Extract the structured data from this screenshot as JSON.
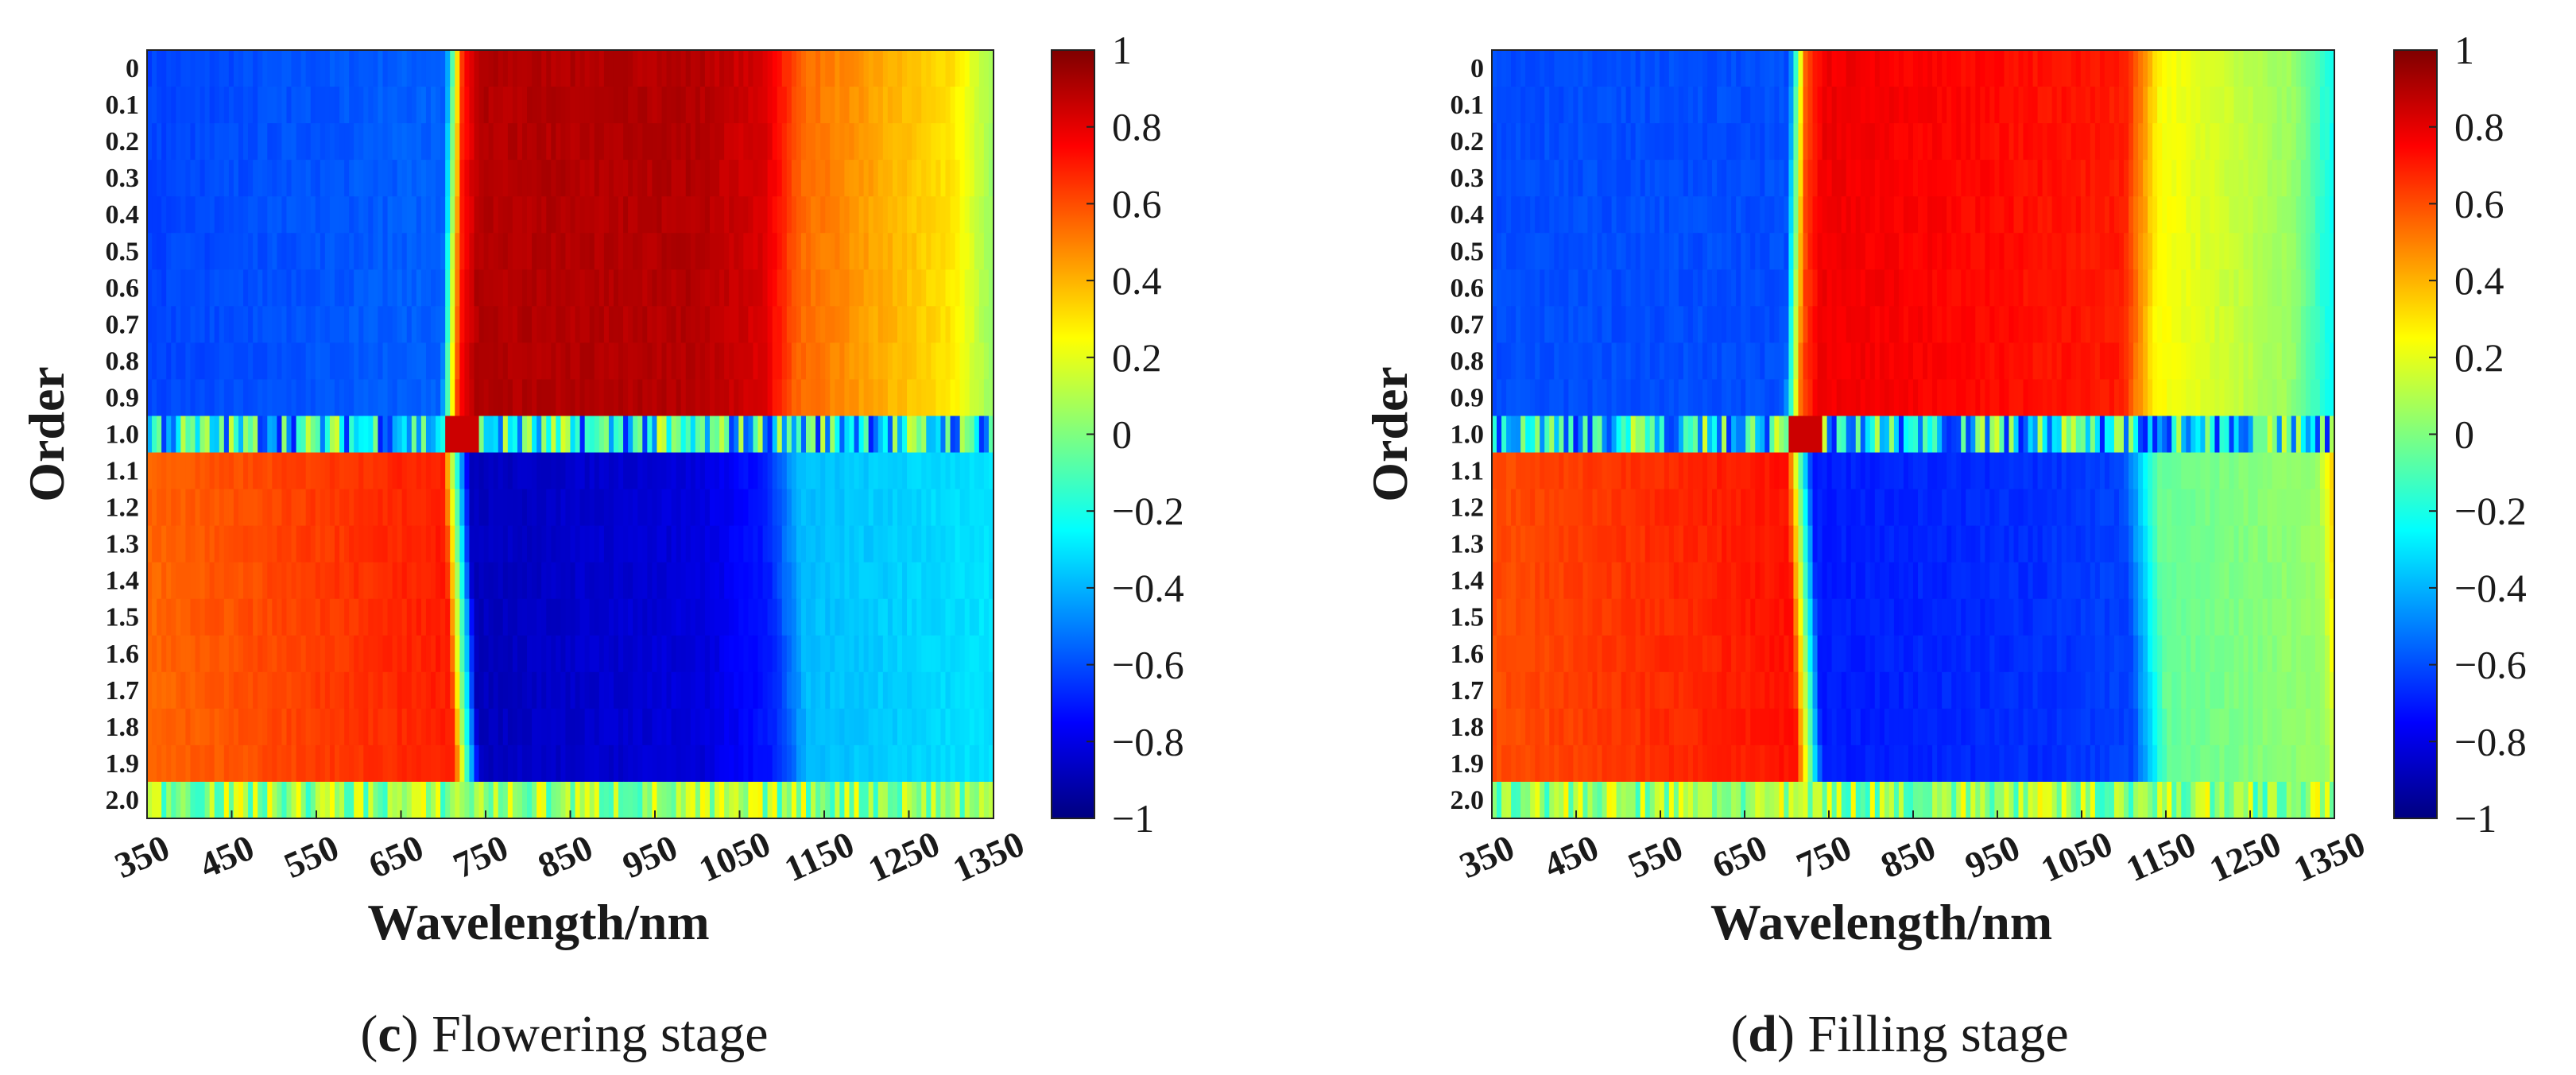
{
  "chart_data": [
    {
      "type": "heatmap",
      "panel_letter": "c",
      "caption": "Flowering stage",
      "xlabel": "Wavelength/nm",
      "ylabel": "Order",
      "x_ticks": [
        "350",
        "450",
        "550",
        "650",
        "750",
        "850",
        "950",
        "1050",
        "1150",
        "1250",
        "1350"
      ],
      "x_range": [
        350,
        1350
      ],
      "y_ticks": [
        "0",
        "0.1",
        "0.2",
        "0.3",
        "0.4",
        "0.5",
        "0.6",
        "0.7",
        "0.8",
        "0.9",
        "1.0",
        "1.1",
        "1.2",
        "1.3",
        "1.4",
        "1.5",
        "1.6",
        "1.7",
        "1.8",
        "1.9",
        "2.0"
      ],
      "colorbar": {
        "range": [
          -1,
          1
        ],
        "ticks": [
          "1",
          "0.8",
          "0.6",
          "0.4",
          "0.2",
          "0",
          "−0.2",
          "−0.4",
          "−0.6",
          "−0.8",
          "−1"
        ],
        "colormap": "jet"
      },
      "regions": {
        "low_order_rows": "0-0.9",
        "low_order_profile": [
          [
            350,
            -0.62
          ],
          [
            700,
            -0.56
          ],
          [
            720,
            0.7
          ],
          [
            740,
            0.9
          ],
          [
            1000,
            0.9
          ],
          [
            1080,
            0.82
          ],
          [
            1120,
            0.55
          ],
          [
            1300,
            0.3
          ],
          [
            1350,
            0.05
          ]
        ],
        "order_1_0_row": "noisy, mostly near 0 to -0.5 with a peak near 720 nm",
        "high_order_rows": "1.1-1.9",
        "high_order_profile": [
          [
            350,
            0.55
          ],
          [
            700,
            0.7
          ],
          [
            730,
            -0.88
          ],
          [
            1000,
            -0.82
          ],
          [
            1080,
            -0.7
          ],
          [
            1120,
            -0.38
          ],
          [
            1350,
            -0.3
          ]
        ],
        "order_2_0_row": "noisy, values around -0.2 to 0.3"
      }
    },
    {
      "type": "heatmap",
      "panel_letter": "d",
      "caption": "Filling stage",
      "xlabel": "Wavelength/nm",
      "ylabel": "Order",
      "x_ticks": [
        "350",
        "450",
        "550",
        "650",
        "750",
        "850",
        "950",
        "1050",
        "1150",
        "1250",
        "1350"
      ],
      "x_range": [
        350,
        1350
      ],
      "y_ticks": [
        "0",
        "0.1",
        "0.2",
        "0.3",
        "0.4",
        "0.5",
        "0.6",
        "0.7",
        "0.8",
        "0.9",
        "1.0",
        "1.1",
        "1.2",
        "1.3",
        "1.4",
        "1.5",
        "1.6",
        "1.7",
        "1.8",
        "1.9",
        "2.0"
      ],
      "colorbar": {
        "range": [
          -1,
          1
        ],
        "ticks": [
          "1",
          "0.8",
          "0.6",
          "0.4",
          "0.2",
          "0",
          "−0.2",
          "−0.4",
          "−0.6",
          "−0.8",
          "−1"
        ],
        "colormap": "jet"
      },
      "regions": {
        "low_order_rows": "0-0.9",
        "low_order_profile": [
          [
            350,
            -0.6
          ],
          [
            700,
            -0.6
          ],
          [
            720,
            0.6
          ],
          [
            740,
            0.78
          ],
          [
            1000,
            0.72
          ],
          [
            1100,
            0.7
          ],
          [
            1140,
            0.25
          ],
          [
            1300,
            0.05
          ],
          [
            1350,
            -0.25
          ]
        ],
        "order_1_0_row": "noisy, mostly near 0 to -0.6 with a peak near 720 nm",
        "high_order_rows": "1.1-1.9",
        "high_order_profile": [
          [
            350,
            0.6
          ],
          [
            700,
            0.72
          ],
          [
            730,
            -0.7
          ],
          [
            1000,
            -0.66
          ],
          [
            1100,
            -0.62
          ],
          [
            1140,
            -0.05
          ],
          [
            1330,
            0.05
          ],
          [
            1350,
            0.4
          ]
        ],
        "order_2_0_row": "noisy, values around -0.1 to 0.2"
      }
    }
  ]
}
